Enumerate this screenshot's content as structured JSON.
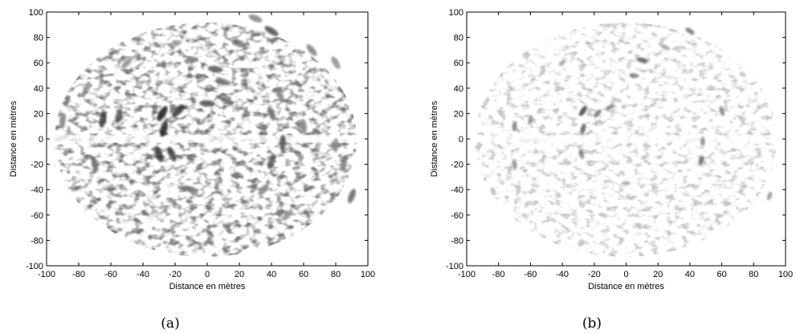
{
  "chart_data": [
    {
      "type": "heatmap",
      "panel_caption": "(a)",
      "xlabel": "Distance en mètres",
      "ylabel": "Distance en mètres",
      "xlim": [
        -100,
        100
      ],
      "ylim": [
        -100,
        100
      ],
      "xticks": [
        -100,
        -80,
        -60,
        -40,
        -20,
        0,
        20,
        40,
        60,
        80,
        100
      ],
      "yticks": [
        -100,
        -80,
        -60,
        -40,
        -20,
        0,
        20,
        40,
        60,
        80,
        100
      ],
      "colormap": "grayscale (white = low, black = high)",
      "grid": false,
      "speckle_density": "high",
      "strong_reflectors": [
        {
          "x": -65,
          "y": 15,
          "intensity": 0.75
        },
        {
          "x": -55,
          "y": 18,
          "intensity": 0.65
        },
        {
          "x": -28,
          "y": 20,
          "intensity": 0.9
        },
        {
          "x": -27,
          "y": 8,
          "intensity": 0.85
        },
        {
          "x": -18,
          "y": 22,
          "intensity": 0.8
        },
        {
          "x": 0,
          "y": 28,
          "intensity": 0.7
        },
        {
          "x": 12,
          "y": 30,
          "intensity": 0.6
        },
        {
          "x": 5,
          "y": 55,
          "intensity": 0.65
        },
        {
          "x": 10,
          "y": 45,
          "intensity": 0.55
        },
        {
          "x": -10,
          "y": 62,
          "intensity": 0.5
        },
        {
          "x": 40,
          "y": 85,
          "intensity": 0.7
        },
        {
          "x": 30,
          "y": 95,
          "intensity": 0.5
        },
        {
          "x": 65,
          "y": 70,
          "intensity": 0.5
        },
        {
          "x": 80,
          "y": 60,
          "intensity": 0.45
        },
        {
          "x": 40,
          "y": 20,
          "intensity": 0.6
        },
        {
          "x": 45,
          "y": 35,
          "intensity": 0.5
        },
        {
          "x": 47,
          "y": -3,
          "intensity": 0.7
        },
        {
          "x": 40,
          "y": -18,
          "intensity": 0.65
        },
        {
          "x": 60,
          "y": 10,
          "intensity": 0.5
        },
        {
          "x": -70,
          "y": -20,
          "intensity": 0.6
        },
        {
          "x": -30,
          "y": -12,
          "intensity": 0.8
        },
        {
          "x": -22,
          "y": -12,
          "intensity": 0.75
        },
        {
          "x": -10,
          "y": -40,
          "intensity": 0.55
        },
        {
          "x": 35,
          "y": -40,
          "intensity": 0.5
        },
        {
          "x": 50,
          "y": -60,
          "intensity": 0.45
        },
        {
          "x": 90,
          "y": -45,
          "intensity": 0.6
        },
        {
          "x": 85,
          "y": -20,
          "intensity": 0.5
        },
        {
          "x": 80,
          "y": -5,
          "intensity": 0.45
        },
        {
          "x": -75,
          "y": 40,
          "intensity": 0.45
        },
        {
          "x": -90,
          "y": 15,
          "intensity": 0.5
        },
        {
          "x": -50,
          "y": 60,
          "intensity": 0.45
        },
        {
          "x": -20,
          "y": 75,
          "intensity": 0.4
        },
        {
          "x": 20,
          "y": 75,
          "intensity": 0.55
        }
      ]
    },
    {
      "type": "heatmap",
      "panel_caption": "(b)",
      "xlabel": "Distance en mètres",
      "ylabel": "Distance en mètres",
      "xlim": [
        -100,
        100
      ],
      "ylim": [
        -100,
        100
      ],
      "xticks": [
        -100,
        -80,
        -60,
        -40,
        -20,
        0,
        20,
        40,
        60,
        80,
        100
      ],
      "yticks": [
        -100,
        -80,
        -60,
        -40,
        -20,
        0,
        20,
        40,
        60,
        80,
        100
      ],
      "colormap": "grayscale (white = low, black = high)",
      "grid": false,
      "speckle_density": "low",
      "strong_reflectors": [
        {
          "x": -70,
          "y": 10,
          "intensity": 0.55
        },
        {
          "x": -60,
          "y": 15,
          "intensity": 0.5
        },
        {
          "x": -27,
          "y": 22,
          "intensity": 0.8
        },
        {
          "x": -27,
          "y": 8,
          "intensity": 0.7
        },
        {
          "x": -18,
          "y": 20,
          "intensity": 0.6
        },
        {
          "x": -10,
          "y": 25,
          "intensity": 0.55
        },
        {
          "x": 10,
          "y": 62,
          "intensity": 0.7
        },
        {
          "x": 5,
          "y": 50,
          "intensity": 0.55
        },
        {
          "x": 40,
          "y": 85,
          "intensity": 0.6
        },
        {
          "x": 60,
          "y": 22,
          "intensity": 0.55
        },
        {
          "x": 48,
          "y": -2,
          "intensity": 0.5
        },
        {
          "x": 47,
          "y": -17,
          "intensity": 0.6
        },
        {
          "x": -70,
          "y": -20,
          "intensity": 0.5
        },
        {
          "x": -28,
          "y": -12,
          "intensity": 0.55
        },
        {
          "x": 0,
          "y": -35,
          "intensity": 0.4
        },
        {
          "x": 90,
          "y": -45,
          "intensity": 0.45
        },
        {
          "x": -40,
          "y": 60,
          "intensity": 0.4
        },
        {
          "x": 25,
          "y": 72,
          "intensity": 0.4
        }
      ]
    }
  ]
}
